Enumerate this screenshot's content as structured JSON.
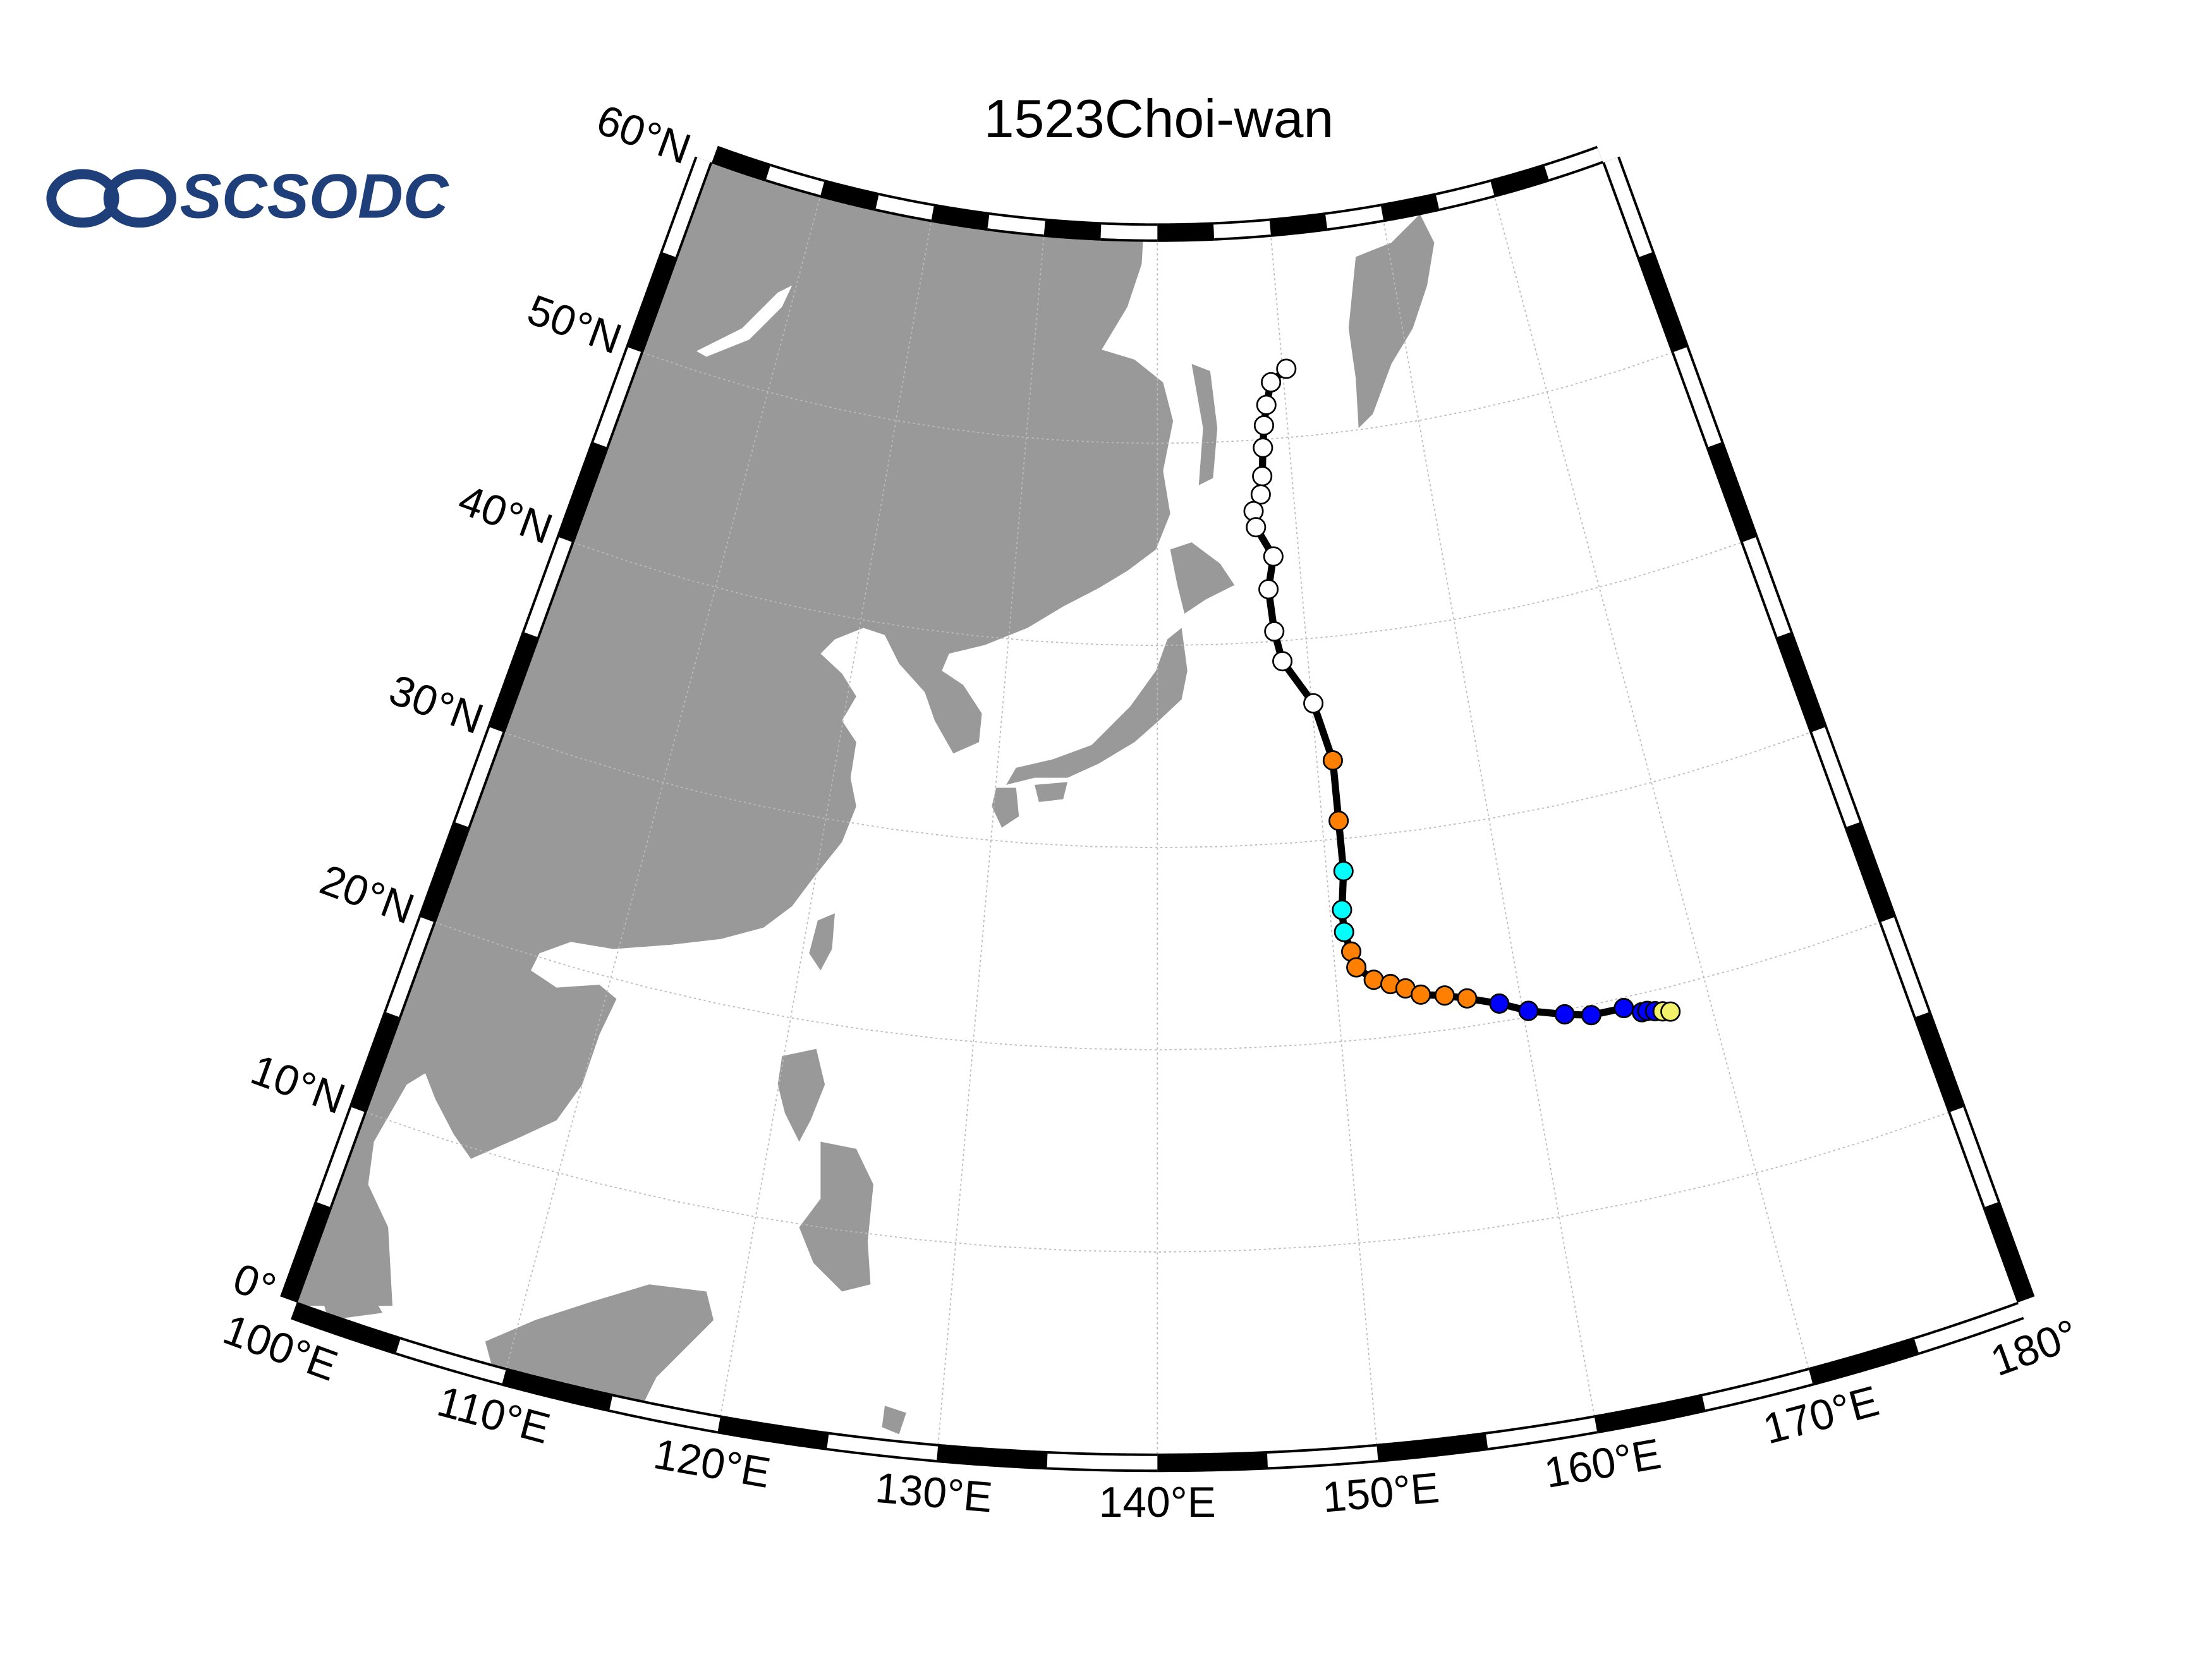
{
  "chart_data": {
    "type": "track",
    "title": "1523Choi-wan",
    "logo": "SCSODC",
    "lonlim": [
      100,
      180
    ],
    "latlim": [
      0,
      60
    ],
    "xticks": [
      {
        "value": 100,
        "label": "100°E"
      },
      {
        "value": 110,
        "label": "110°E"
      },
      {
        "value": 120,
        "label": "120°E"
      },
      {
        "value": 130,
        "label": "130°E"
      },
      {
        "value": 140,
        "label": "140°E"
      },
      {
        "value": 150,
        "label": "150°E"
      },
      {
        "value": 160,
        "label": "160°E"
      },
      {
        "value": 170,
        "label": "170°E"
      },
      {
        "value": 180,
        "label": "180°"
      }
    ],
    "yticks": [
      {
        "value": 0,
        "label": "0°"
      },
      {
        "value": 10,
        "label": "10°N"
      },
      {
        "value": 20,
        "label": "20°N"
      },
      {
        "value": 30,
        "label": "30°N"
      },
      {
        "value": 40,
        "label": "40°N"
      },
      {
        "value": 50,
        "label": "50°N"
      },
      {
        "value": 60,
        "label": "60°N"
      }
    ],
    "grid": true,
    "land_color": "#999999",
    "line_color": "#000000",
    "x": [
      167.8,
      167.4,
      167.0,
      166.6,
      166.3,
      165.4,
      163.6,
      162.2,
      160.3,
      158.8,
      157.1,
      155.9,
      154.6,
      153.8,
      153.0,
      152.1,
      151.2,
      151.0,
      150.7,
      150.7,
      151.0,
      151.0,
      151.0,
      150.1,
      148.3,
      147.9,
      147.7,
      148.2,
      147.1,
      147.0,
      147.6,
      147.8,
      148.0,
      148.2,
      148.5,
      149.0,
      150.3
    ],
    "values": [
      18.8,
      18.9,
      19.0,
      19.1,
      19.1,
      19.5,
      19.5,
      19.8,
      20.3,
      20.9,
      21.4,
      21.7,
      21.9,
      22.3,
      22.6,
      22.9,
      23.6,
      24.4,
      25.4,
      26.5,
      28.4,
      30.9,
      33.9,
      36.8,
      39.0,
      40.5,
      42.6,
      44.2,
      45.7,
      46.5,
      47.3,
      48.2,
      49.6,
      50.7,
      51.7,
      52.8,
      53.4
    ],
    "point_colors": [
      "#f2f26a",
      "#f2f26a",
      "#0000ff",
      "#0000ff",
      "#0000ff",
      "#0000ff",
      "#0000ff",
      "#0000ff",
      "#0000ff",
      "#0000ff",
      "#ff8000",
      "#ff8000",
      "#ff8000",
      "#ff8000",
      "#ff8000",
      "#ff8000",
      "#ff8000",
      "#ff8000",
      "#00ffff",
      "#00ffff",
      "#00ffff",
      "#ff8000",
      "#ff8000",
      "#ffffff",
      "#ffffff",
      "#ffffff",
      "#ffffff",
      "#ffffff",
      "#ffffff",
      "#ffffff",
      "#ffffff",
      "#ffffff",
      "#ffffff",
      "#ffffff",
      "#ffffff",
      "#ffffff",
      "#ffffff"
    ]
  }
}
